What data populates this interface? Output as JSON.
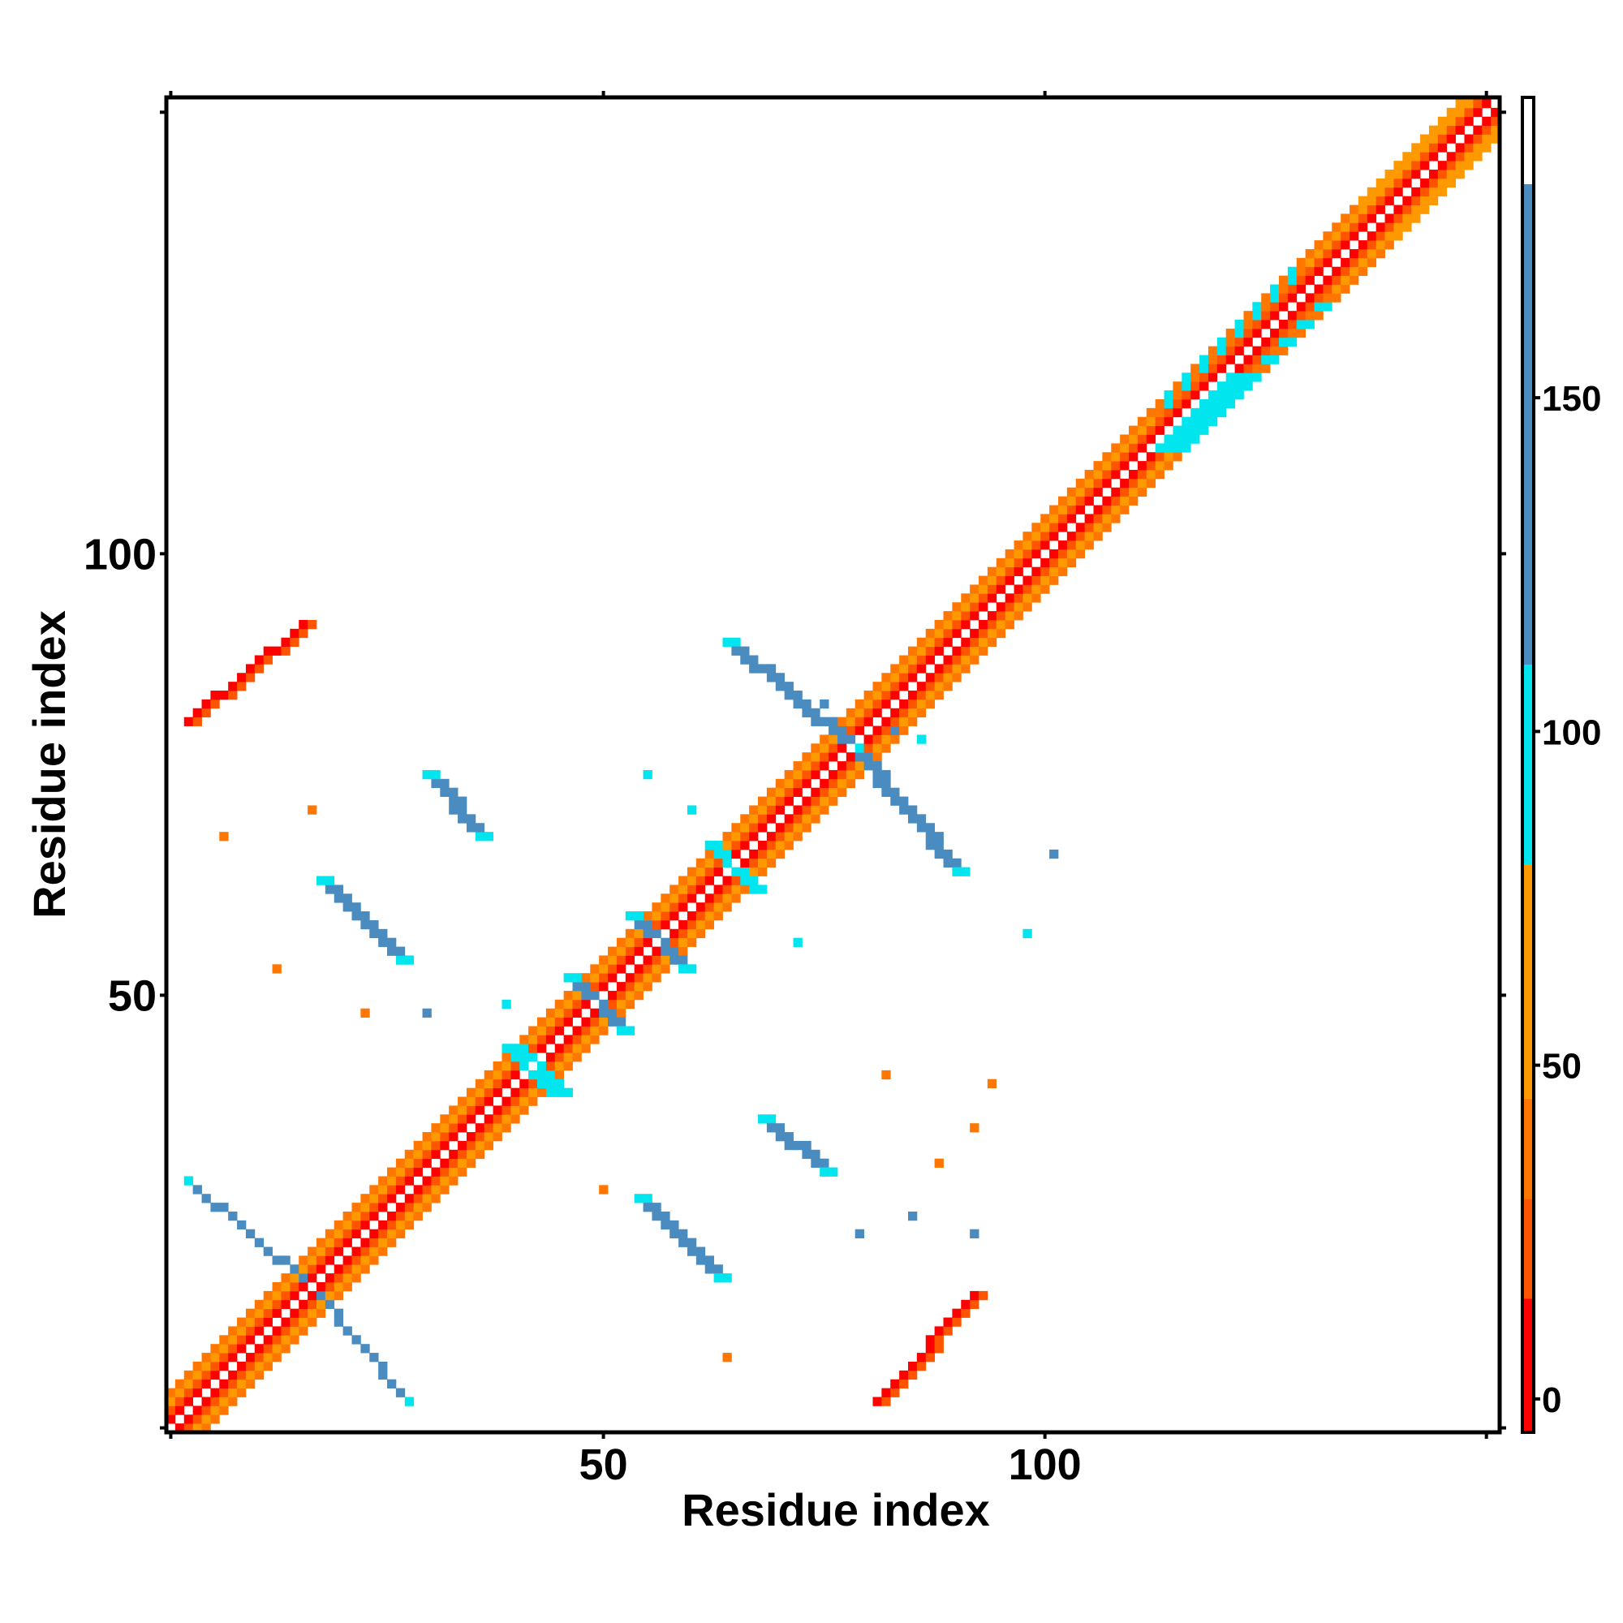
{
  "chart_data": {
    "type": "heatmap",
    "title": "",
    "xlabel": "Residue index",
    "ylabel": "Residue index",
    "xlim": [
      1,
      151
    ],
    "ylim": [
      1,
      151
    ],
    "x_ticks": [
      50,
      100
    ],
    "y_ticks": [
      50,
      100
    ],
    "grid": false,
    "legend": "colorbar-right",
    "colorbar": {
      "ticks": [
        0,
        50,
        100,
        150
      ],
      "range": [
        -5,
        195
      ],
      "segments": [
        {
          "from": -5,
          "to": 15,
          "color": "#ff0000"
        },
        {
          "from": 15,
          "to": 30,
          "color": "#ff5500"
        },
        {
          "from": 30,
          "to": 45,
          "color": "#ff7700"
        },
        {
          "from": 45,
          "to": 80,
          "color": "#ff9900"
        },
        {
          "from": 80,
          "to": 110,
          "color": "#00e5ee"
        },
        {
          "from": 110,
          "to": 182,
          "color": "#4a8cc0"
        },
        {
          "from": 182,
          "to": 195,
          "color": "#ffffff"
        }
      ]
    },
    "colors": {
      "red": "#ff0000",
      "orange_red": "#ff5500",
      "orange": "#ff7700",
      "light_orange": "#ff9900",
      "cyan": "#00e5ee",
      "steel_blue": "#4a8cc0"
    },
    "regions": [
      {
        "kind": "diagonal",
        "from": 1,
        "to": 151,
        "offsets": [
          1,
          2,
          3,
          4
        ],
        "color": "red"
      },
      {
        "kind": "band",
        "start": [
          17,
          17
        ],
        "end": [
          28,
          4
        ],
        "width": 1,
        "color": "steel_blue"
      },
      {
        "kind": "band",
        "start": [
          3,
          29
        ],
        "end": [
          17,
          17
        ],
        "width": 1,
        "color": "steel_blue"
      },
      {
        "kind": "band",
        "start": [
          54,
          27
        ],
        "end": [
          63,
          18
        ],
        "width": 2,
        "color": "steel_blue"
      },
      {
        "kind": "band",
        "start": [
          27,
          54
        ],
        "end": [
          18,
          63
        ],
        "width": 2,
        "color": "steel_blue"
      },
      {
        "kind": "band",
        "start": [
          81,
          4
        ],
        "end": [
          92,
          16
        ],
        "width": 2,
        "color": "red"
      },
      {
        "kind": "band",
        "start": [
          3,
          81
        ],
        "end": [
          16,
          92
        ],
        "width": 2,
        "color": "red"
      },
      {
        "kind": "band",
        "start": [
          68,
          36
        ],
        "end": [
          75,
          30
        ],
        "width": 2,
        "color": "steel_blue"
      },
      {
        "kind": "band",
        "start": [
          36,
          68
        ],
        "end": [
          30,
          75
        ],
        "width": 2,
        "color": "steel_blue"
      },
      {
        "kind": "band",
        "start": [
          39,
          44
        ],
        "end": [
          44,
          39
        ],
        "width": 3,
        "color": "cyan"
      },
      {
        "kind": "band",
        "start": [
          46,
          52
        ],
        "end": [
          52,
          46
        ],
        "width": 2,
        "color": "steel_blue"
      },
      {
        "kind": "band",
        "start": [
          53,
          59
        ],
        "end": [
          59,
          53
        ],
        "width": 2,
        "color": "steel_blue"
      },
      {
        "kind": "band",
        "start": [
          62,
          67
        ],
        "end": [
          67,
          62
        ],
        "width": 2,
        "color": "cyan"
      },
      {
        "kind": "band",
        "start": [
          78,
          78
        ],
        "end": [
          90,
          64
        ],
        "width": 2,
        "color": "steel_blue"
      },
      {
        "kind": "band",
        "start": [
          64,
          90
        ],
        "end": [
          78,
          78
        ],
        "width": 2,
        "color": "steel_blue"
      },
      {
        "kind": "band",
        "start": [
          120,
          120
        ],
        "end": [
          112,
          112
        ],
        "width": 5,
        "color": "cyan"
      }
    ]
  }
}
